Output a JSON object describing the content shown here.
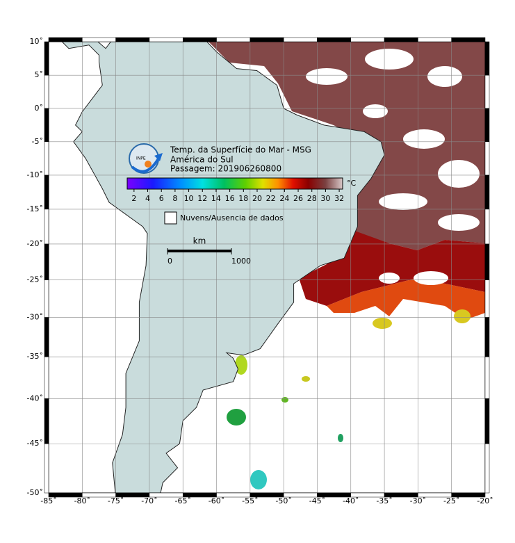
{
  "map": {
    "title": "Temp. da Superfície do Mar - MSG",
    "region": "América do Sul",
    "pass": "Passagem: 201906260800",
    "logo": "INPE",
    "latitudes": [
      {
        "value": 10,
        "label": "10˚"
      },
      {
        "value": 5,
        "label": "5˚"
      },
      {
        "value": 0,
        "label": "0˚"
      },
      {
        "value": -5,
        "label": "-5˚"
      },
      {
        "value": -10,
        "label": "-10˚"
      },
      {
        "value": -15,
        "label": "-15˚"
      },
      {
        "value": -20,
        "label": "-20˚"
      },
      {
        "value": -25,
        "label": "-25˚"
      },
      {
        "value": -30,
        "label": "-30˚"
      },
      {
        "value": -35,
        "label": "-35˚"
      },
      {
        "value": -40,
        "label": "-40˚"
      },
      {
        "value": -45,
        "label": "-45˚"
      },
      {
        "value": -50,
        "label": "-50˚"
      }
    ],
    "longitudes": [
      {
        "value": -85,
        "label": "-85˚"
      },
      {
        "value": -80,
        "label": "-80˚"
      },
      {
        "value": -75,
        "label": "-75˚"
      },
      {
        "value": -70,
        "label": "-70˚"
      },
      {
        "value": -65,
        "label": "-65˚"
      },
      {
        "value": -60,
        "label": "-60˚"
      },
      {
        "value": -55,
        "label": "-55˚"
      },
      {
        "value": -50,
        "label": "-50˚"
      },
      {
        "value": -45,
        "label": "-45˚"
      },
      {
        "value": -40,
        "label": "-40˚"
      },
      {
        "value": -35,
        "label": "-35˚"
      },
      {
        "value": -30,
        "label": "-30˚"
      },
      {
        "value": -25,
        "label": "-25˚"
      },
      {
        "value": -20,
        "label": "-20˚"
      }
    ],
    "colorbar": {
      "unit": "°C",
      "range": [
        1,
        32.5
      ],
      "ticks": [
        2,
        4,
        6,
        8,
        10,
        12,
        14,
        16,
        18,
        20,
        22,
        24,
        26,
        28,
        30,
        32
      ]
    },
    "legend": "Nuvens/Ausencia de dados",
    "scale": {
      "unit": "km",
      "ticks": [
        0,
        1000
      ]
    }
  }
}
